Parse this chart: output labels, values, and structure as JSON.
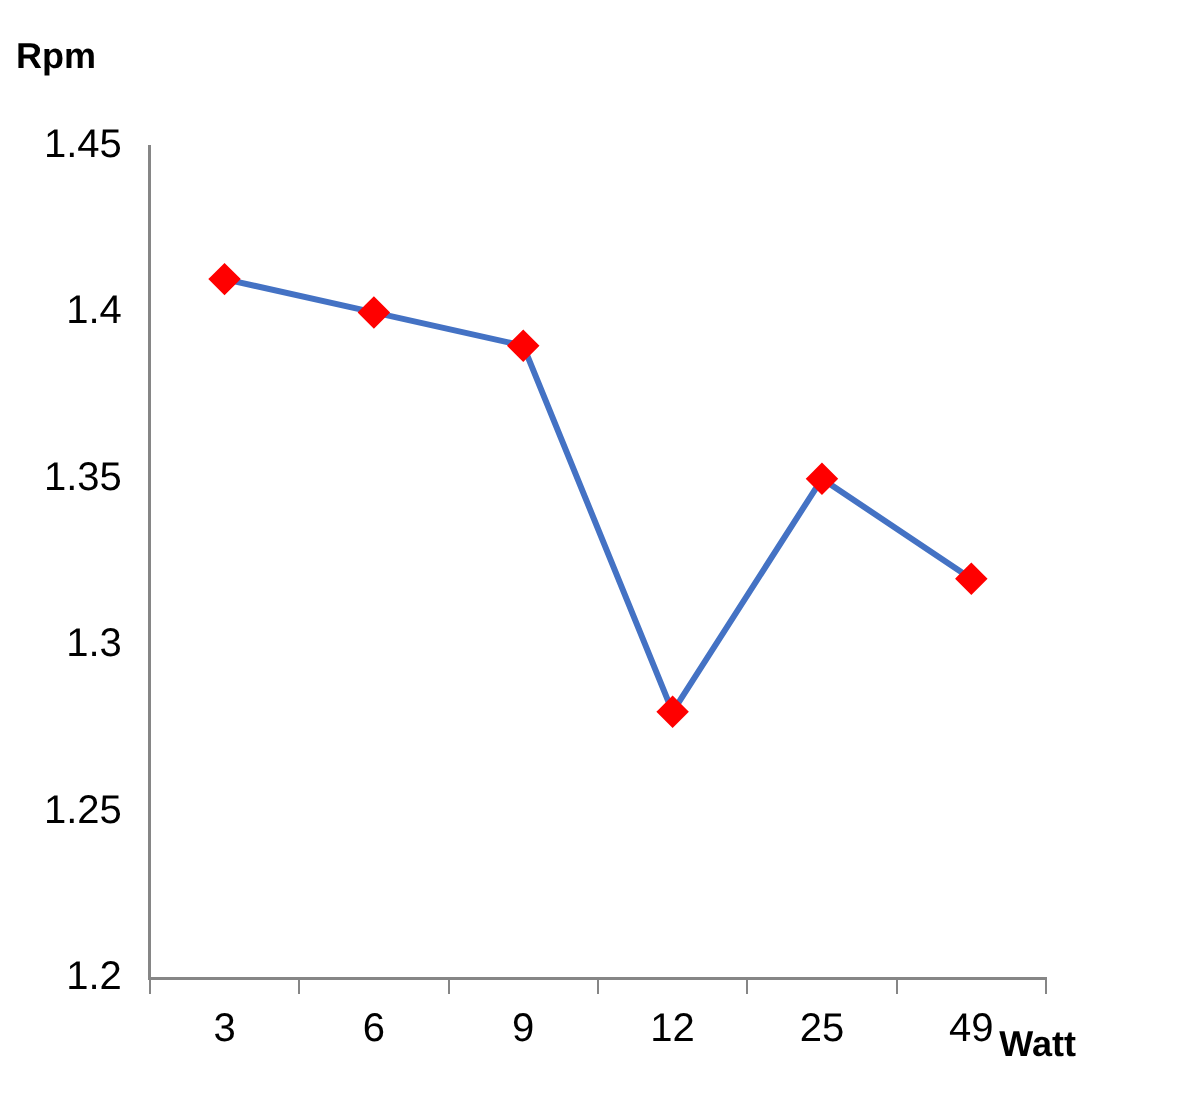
{
  "chart_data": {
    "type": "line",
    "xlabel": "Watt",
    "ylabel": "Rpm",
    "categories": [
      "3",
      "6",
      "9",
      "12",
      "25",
      "49"
    ],
    "series": [
      {
        "color": "#4472c4",
        "colors": [
          "#ff0000",
          "#ff0000",
          "#ff0000",
          "#ff0000",
          "#ff0000",
          "#ff0000"
        ],
        "values": [
          1.41,
          1.4,
          1.39,
          1.28,
          1.35,
          1.32
        ]
      }
    ],
    "ylim": [
      1.2,
      1.45
    ],
    "yticks": [
      1.2,
      1.25,
      1.3,
      1.35,
      1.4,
      1.45
    ],
    "grid": false,
    "legend": false,
    "marker": "diamond",
    "line_style": "solid"
  }
}
